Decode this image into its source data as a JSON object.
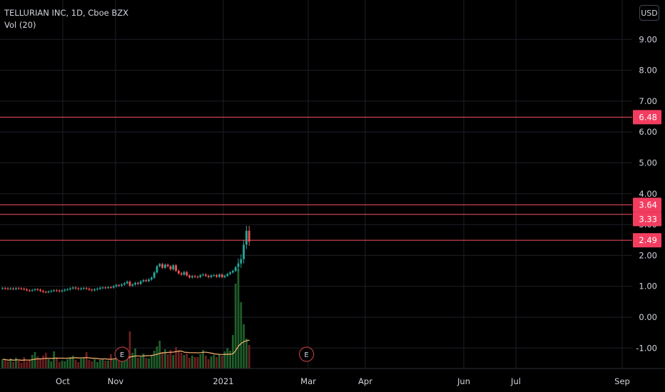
{
  "legend": {
    "title": "TELLURIAN INC, 1D, Cboe BZX",
    "indicator": "Vol (20)"
  },
  "currency_button": "USD",
  "chart_data": {
    "type": "candlestick",
    "yaxis_ticks": [
      "9.00",
      "8.00",
      "7.00",
      "6.00",
      "5.00",
      "4.00",
      "3.00",
      "2.00",
      "1.00",
      "0.00",
      "-1.00"
    ],
    "ylim": [
      -1.6,
      10.1
    ],
    "xaxis_ticks": [
      "Oct",
      "Nov",
      "2021",
      "Mar",
      "Apr",
      "Jun",
      "Jul",
      "Sep"
    ],
    "horizontal_lines": [
      {
        "value": 6.48,
        "label": "6.48",
        "color": "#f7525f"
      },
      {
        "value": 3.64,
        "label": "3.64",
        "color": "#f7525f"
      },
      {
        "value": 3.33,
        "label": "3.33",
        "color": "#f7525f"
      },
      {
        "value": 2.49,
        "label": "2.49",
        "color": "#f7525f"
      }
    ],
    "earnings_markers": [
      {
        "label": "E",
        "x_index": 44
      },
      {
        "label": "E",
        "x_index": 112
      }
    ],
    "colors": {
      "up": "#26a69a",
      "down": "#ef5350",
      "vol_up": "#1e5e2a",
      "vol_down": "#6b1f1f",
      "vol_ma": "#ffb570",
      "grid": "#1c1f26",
      "axis_text": "#d1d4dc"
    },
    "close": [
      0.94,
      0.93,
      0.92,
      0.93,
      0.91,
      0.94,
      0.93,
      0.92,
      0.9,
      0.87,
      0.86,
      0.88,
      0.9,
      0.89,
      0.85,
      0.82,
      0.81,
      0.83,
      0.85,
      0.87,
      0.86,
      0.84,
      0.86,
      0.89,
      0.9,
      0.93,
      0.96,
      0.93,
      0.91,
      0.93,
      0.94,
      0.92,
      0.89,
      0.87,
      0.9,
      0.92,
      0.95,
      0.96,
      0.95,
      0.97,
      0.96,
      1.0,
      1.04,
      1.02,
      1.06,
      1.1,
      1.15,
      1.02,
      1.06,
      1.11,
      1.08,
      1.16,
      1.2,
      1.17,
      1.22,
      1.28,
      1.45,
      1.65,
      1.72,
      1.6,
      1.7,
      1.65,
      1.55,
      1.68,
      1.5,
      1.42,
      1.38,
      1.46,
      1.35,
      1.29,
      1.33,
      1.31,
      1.3,
      1.36,
      1.38,
      1.34,
      1.3,
      1.35,
      1.36,
      1.31,
      1.38,
      1.3,
      1.34,
      1.4,
      1.45,
      1.5,
      1.62,
      1.74,
      1.88,
      2.35,
      2.8,
      2.45
    ],
    "volume": [
      130,
      120,
      100,
      140,
      90,
      150,
      110,
      80,
      160,
      100,
      120,
      190,
      230,
      170,
      140,
      180,
      220,
      130,
      100,
      240,
      150,
      90,
      110,
      100,
      130,
      160,
      180,
      120,
      90,
      140,
      150,
      230,
      120,
      100,
      130,
      90,
      120,
      140,
      110,
      110,
      200,
      120,
      230,
      150,
      140,
      110,
      240,
      520,
      220,
      280,
      150,
      160,
      210,
      150,
      140,
      180,
      250,
      310,
      390,
      230,
      270,
      200,
      260,
      190,
      300,
      250,
      220,
      190,
      210,
      150,
      180,
      160,
      160,
      200,
      260,
      180,
      130,
      170,
      190,
      160,
      200,
      180,
      240,
      290,
      250,
      470,
      1190,
      1400,
      930,
      620,
      420,
      330
    ]
  }
}
